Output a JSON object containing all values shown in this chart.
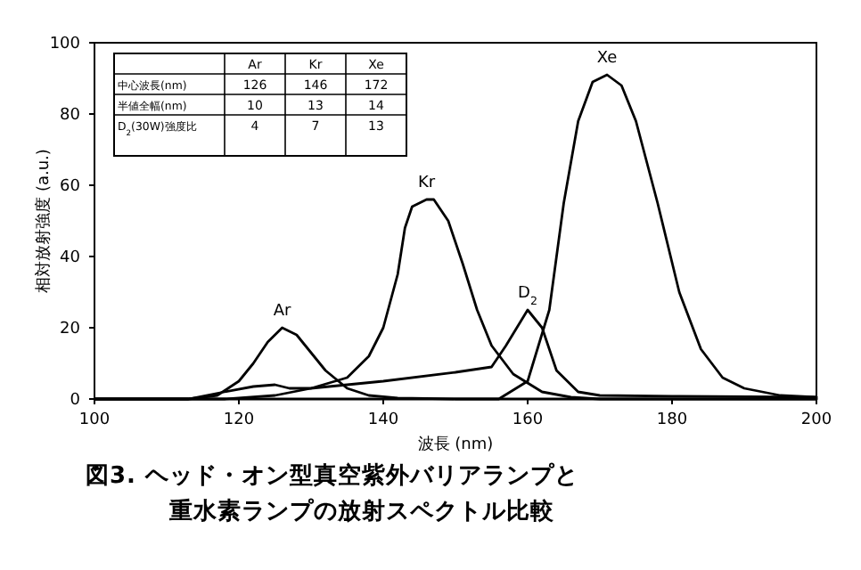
{
  "chart_data": {
    "type": "line",
    "title": "図3. ヘッド・オン型真空紫外バリアランプと重水素ランプの放射スペクトル比較",
    "xlabel": "波長 (nm)",
    "ylabel": "相対放射強度 (a.u.)",
    "xlim": [
      100,
      200
    ],
    "ylim": [
      0,
      100
    ],
    "xticks": [
      100,
      120,
      140,
      160,
      180,
      200
    ],
    "yticks": [
      0,
      20,
      40,
      60,
      80,
      100
    ],
    "series": [
      {
        "name": "Ar",
        "color": "#000000",
        "x": [
          100,
          113,
          117,
          120,
          122,
          124,
          126,
          128,
          130,
          132,
          135,
          138,
          142,
          150,
          200
        ],
        "values": [
          0,
          0,
          1,
          5,
          10,
          16,
          20,
          18,
          13,
          8,
          3,
          1,
          0.3,
          0,
          0
        ]
      },
      {
        "name": "Kr",
        "color": "#000000",
        "x": [
          100,
          118,
          125,
          130,
          135,
          138,
          140,
          142,
          143,
          144,
          146,
          147,
          149,
          151,
          153,
          155,
          158,
          162,
          166,
          170,
          200
        ],
        "values": [
          0,
          0,
          1,
          3,
          6,
          12,
          20,
          35,
          48,
          54,
          56,
          56,
          50,
          38,
          25,
          15,
          7,
          2,
          0.5,
          0,
          0
        ]
      },
      {
        "name": "D$_{2}$",
        "color": "#000000",
        "x": [
          100,
          113,
          118,
          122,
          125,
          127,
          130,
          140,
          150,
          155,
          157,
          160,
          162,
          164,
          167,
          170,
          180,
          200
        ],
        "values": [
          0,
          0,
          2,
          3.5,
          4,
          3,
          3,
          5,
          7.5,
          9,
          15,
          25,
          20,
          8,
          2,
          1,
          0.8,
          0.5
        ]
      },
      {
        "name": "Xe",
        "color": "#000000",
        "x": [
          100,
          156,
          160,
          163,
          165,
          167,
          169,
          171,
          173,
          175,
          178,
          181,
          184,
          187,
          190,
          195,
          200
        ],
        "values": [
          0,
          0,
          5,
          25,
          55,
          78,
          89,
          91,
          88,
          78,
          55,
          30,
          14,
          6,
          3,
          1,
          0.5
        ]
      }
    ],
    "annotations": [
      "Ar",
      "Kr",
      "Xe",
      "中心波長(nm)",
      "126",
      "146",
      "172",
      "半値全幅(nm)",
      "10",
      "13",
      "14",
      "D$_{2}$(30W)強度比",
      "4",
      "7",
      "13"
    ]
  }
}
